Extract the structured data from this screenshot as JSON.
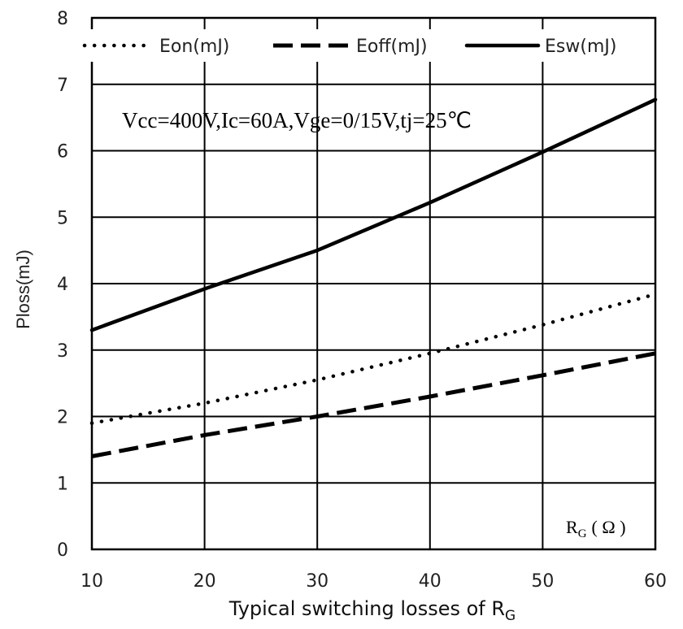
{
  "chart_data": {
    "type": "line",
    "xlabel": "Typical switching losses of R",
    "xlabel_sub": "G",
    "ylabel": "Ploss(mJ)",
    "xlim": [
      10,
      60
    ],
    "ylim": [
      0,
      8
    ],
    "x_ticks": [
      "10",
      "20",
      "30",
      "40",
      "50",
      "60"
    ],
    "y_ticks": [
      "0",
      "1",
      "2",
      "3",
      "4",
      "5",
      "6",
      "7",
      "8"
    ],
    "grid": true,
    "legend_position": "top",
    "annotation": "Vcc=400V,Ic=60A,Vge=0/15V,tj=25℃",
    "axis_unit": {
      "main": "R",
      "sub": "G",
      "rest": "( Ω )"
    },
    "series": [
      {
        "name": "Eon(mJ)",
        "style": "dotted",
        "x": [
          10,
          20,
          30,
          40,
          50,
          60
        ],
        "values": [
          1.9,
          2.2,
          2.55,
          2.95,
          3.38,
          3.84
        ]
      },
      {
        "name": "Eoff(mJ)",
        "style": "dashed",
        "x": [
          10,
          20,
          30,
          40,
          50,
          60
        ],
        "values": [
          1.4,
          1.72,
          2.0,
          2.3,
          2.62,
          2.95
        ]
      },
      {
        "name": "Esw(mJ)",
        "style": "solid",
        "x": [
          10,
          20,
          30,
          40,
          50,
          60
        ],
        "values": [
          3.3,
          3.92,
          4.5,
          5.22,
          5.98,
          6.77
        ]
      }
    ]
  }
}
